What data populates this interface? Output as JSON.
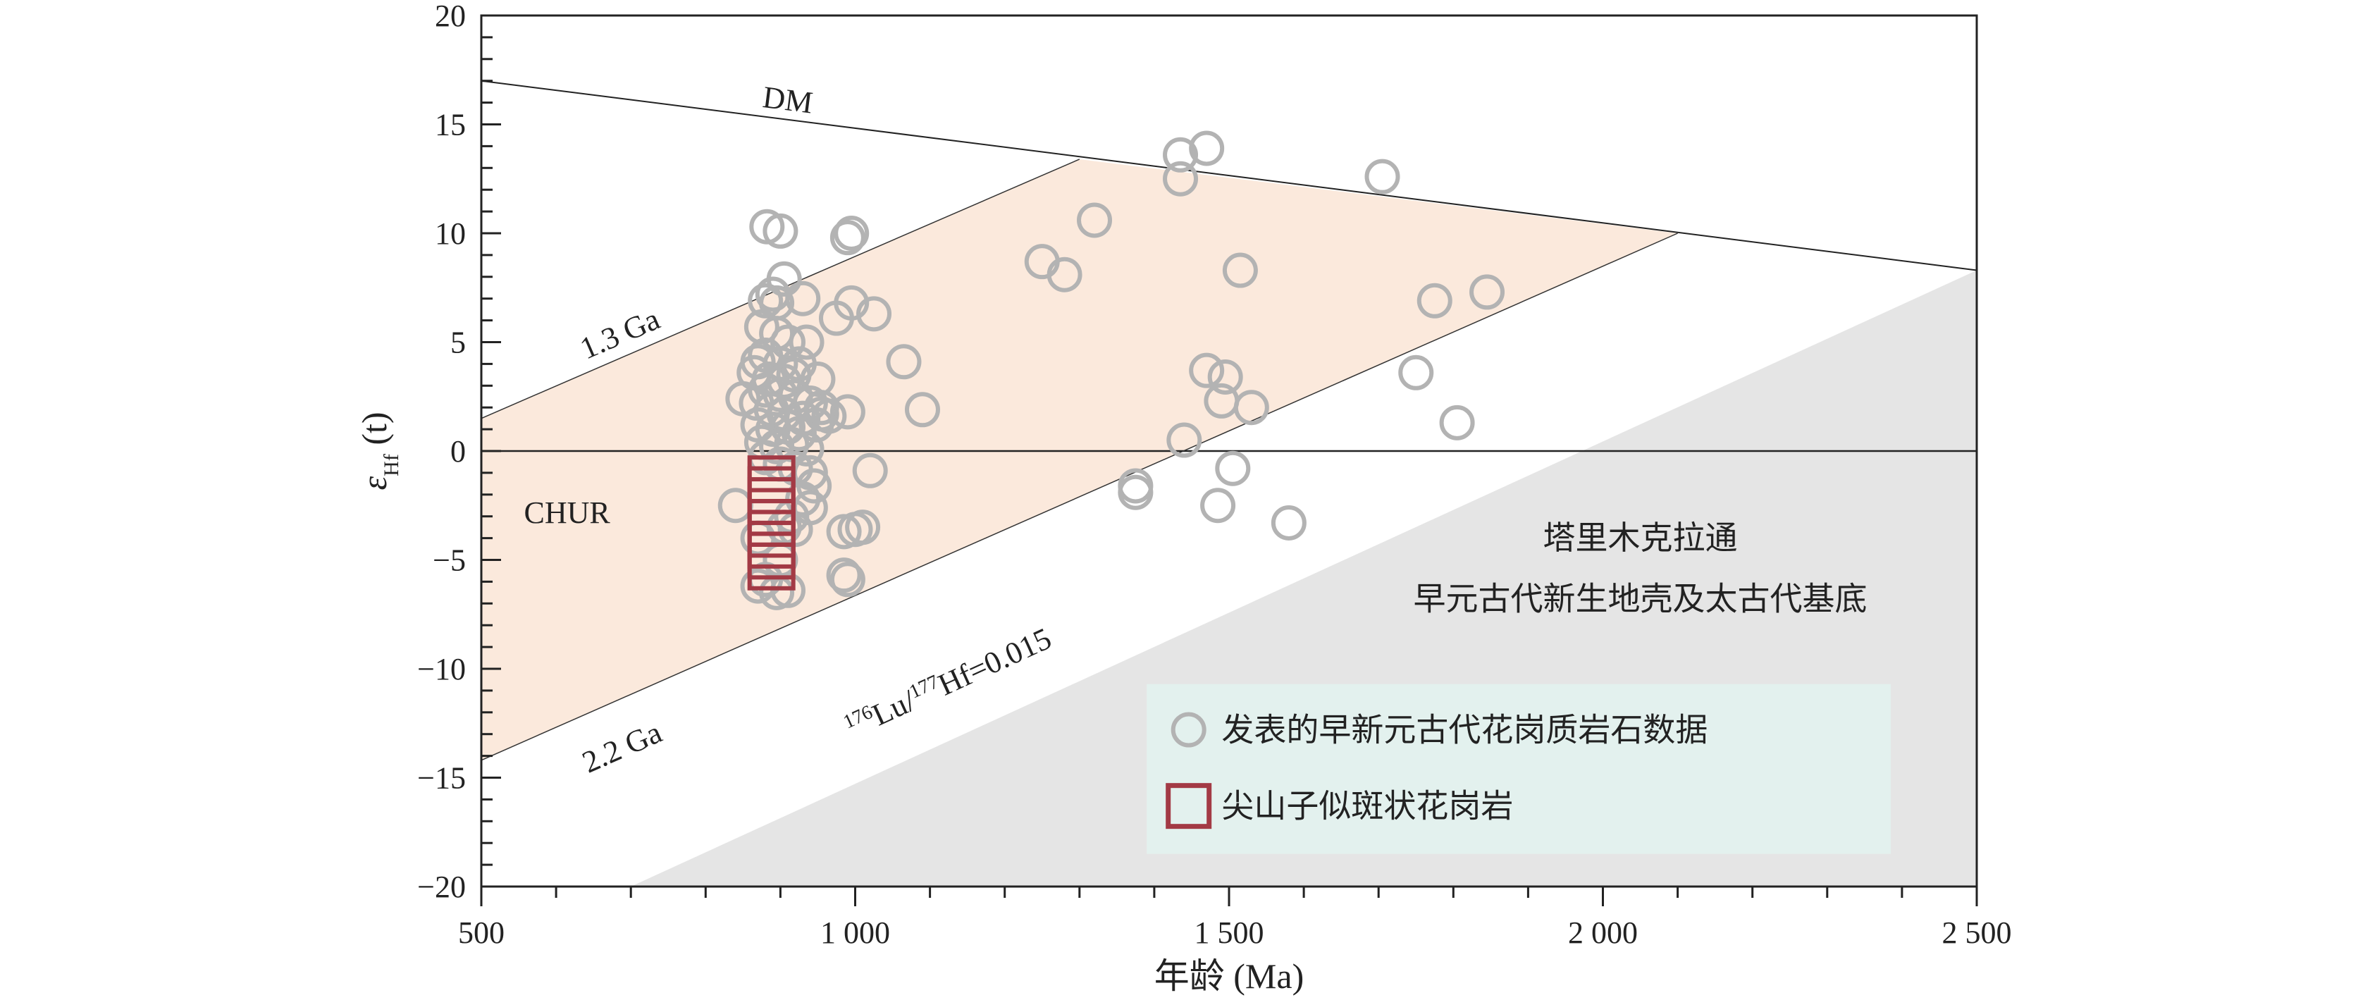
{
  "chart_data": {
    "type": "scatter",
    "xlabel": "年龄 (Ma)",
    "ylabel_main": "ε",
    "ylabel_sub": "Hf",
    "ylabel_suffix": " (t)",
    "xlim": [
      500,
      2500
    ],
    "ylim": [
      -20,
      20
    ],
    "x_major_ticks": [
      500,
      1000,
      1500,
      2000,
      2500
    ],
    "x_tick_labels": [
      "500",
      "1 000",
      "1 500",
      "2 000",
      "2 500"
    ],
    "x_minor_step": 100,
    "y_major_ticks": [
      -20,
      -15,
      -10,
      -5,
      0,
      5,
      10,
      15,
      20
    ],
    "y_tick_labels": [
      "−20",
      "−15",
      "−10",
      "−5",
      "0",
      "5",
      "10",
      "15",
      "20"
    ],
    "y_minor_step": 1,
    "grid": false,
    "lines": {
      "dm": {
        "label": "DM",
        "from": [
          500,
          17.0
        ],
        "to": [
          2500,
          8.3
        ]
      },
      "chur": {
        "label": "CHUR",
        "from": [
          500,
          0
        ],
        "to": [
          2500,
          0
        ]
      },
      "ga13": {
        "label": "1.3 Ga",
        "from": [
          500,
          1.5
        ],
        "to": [
          1300,
          13.4
        ]
      },
      "ga22": {
        "label": "2.2 Ga",
        "from": [
          500,
          -14.2
        ],
        "to": [
          2100,
          10.0
        ]
      },
      "lu": {
        "label_sup1": "176",
        "label_main1": "Lu/",
        "label_sup2": "177",
        "label_main2": "Hf=0.015"
      }
    },
    "regions": {
      "orange_band": {
        "color": "#fbe9dc",
        "polygon": [
          [
            500,
            1.5
          ],
          [
            1300,
            13.4
          ],
          [
            2100,
            10.0
          ],
          [
            500,
            -14.2
          ]
        ]
      },
      "gray_region": {
        "color": "#e5e5e5",
        "polygon": [
          [
            700,
            -20
          ],
          [
            2500,
            8.3
          ],
          [
            2500,
            -20
          ]
        ],
        "label_line1": "塔里木克拉通",
        "label_line2": "早元古代新生地壳及太古代基底"
      }
    },
    "legend": {
      "position": "bottom-right",
      "background": "#e3f1ee",
      "items": [
        {
          "label": "发表的早新元古代花岗质岩石数据",
          "marker": "circle",
          "color": "#b3b3b3"
        },
        {
          "label": "尖山子似斑状花岗岩",
          "marker": "square",
          "color": "#a33a45"
        }
      ]
    },
    "series": [
      {
        "name": "发表的早新元古代花岗质岩石数据",
        "marker": "circle",
        "color": "#b3b3b3",
        "points": [
          [
            882,
            10.3
          ],
          [
            900,
            10.1
          ],
          [
            905,
            7.9
          ],
          [
            890,
            7.2
          ],
          [
            880,
            6.9
          ],
          [
            895,
            6.8
          ],
          [
            930,
            7.0
          ],
          [
            875,
            5.7
          ],
          [
            895,
            5.4
          ],
          [
            910,
            5.0
          ],
          [
            935,
            5.0
          ],
          [
            880,
            4.4
          ],
          [
            870,
            4.1
          ],
          [
            900,
            4.0
          ],
          [
            925,
            4.0
          ],
          [
            950,
            3.3
          ],
          [
            865,
            3.6
          ],
          [
            885,
            3.3
          ],
          [
            905,
            3.2
          ],
          [
            918,
            3.5
          ],
          [
            880,
            2.8
          ],
          [
            900,
            2.6
          ],
          [
            920,
            2.5
          ],
          [
            940,
            2.2
          ],
          [
            850,
            2.4
          ],
          [
            868,
            2.2
          ],
          [
            888,
            1.9
          ],
          [
            905,
            1.7
          ],
          [
            930,
            1.5
          ],
          [
            955,
            1.7
          ],
          [
            870,
            1.2
          ],
          [
            890,
            1.0
          ],
          [
            910,
            1.1
          ],
          [
            925,
            0.8
          ],
          [
            948,
            1.2
          ],
          [
            875,
            0.4
          ],
          [
            895,
            0.2
          ],
          [
            915,
            0.3
          ],
          [
            935,
            0.1
          ],
          [
            880,
            -0.3
          ],
          [
            900,
            -0.6
          ],
          [
            920,
            -0.8
          ],
          [
            940,
            -1.0
          ],
          [
            945,
            -1.6
          ],
          [
            930,
            -2.2
          ],
          [
            915,
            -3.0
          ],
          [
            905,
            -3.5
          ],
          [
            840,
            -2.5
          ],
          [
            940,
            -2.6
          ],
          [
            870,
            -4.0
          ],
          [
            900,
            -5.0
          ],
          [
            880,
            -5.9
          ],
          [
            870,
            -6.2
          ],
          [
            895,
            -6.5
          ],
          [
            910,
            -6.4
          ],
          [
            920,
            -3.6
          ],
          [
            990,
            9.8
          ],
          [
            995,
            10.0
          ],
          [
            995,
            6.8
          ],
          [
            975,
            6.1
          ],
          [
            1025,
            6.3
          ],
          [
            1065,
            4.1
          ],
          [
            1090,
            1.9
          ],
          [
            955,
            2.0
          ],
          [
            965,
            1.6
          ],
          [
            990,
            1.8
          ],
          [
            1020,
            -0.9
          ],
          [
            1000,
            -3.6
          ],
          [
            985,
            -3.7
          ],
          [
            990,
            -5.9
          ],
          [
            985,
            -5.7
          ],
          [
            1010,
            -3.5
          ],
          [
            1250,
            8.7
          ],
          [
            1280,
            8.1
          ],
          [
            1320,
            10.6
          ],
          [
            1435,
            13.6
          ],
          [
            1470,
            13.9
          ],
          [
            1435,
            12.5
          ],
          [
            1515,
            8.3
          ],
          [
            1705,
            12.6
          ],
          [
            1775,
            6.9
          ],
          [
            1845,
            7.3
          ],
          [
            1470,
            3.7
          ],
          [
            1495,
            3.4
          ],
          [
            1490,
            2.3
          ],
          [
            1530,
            2.0
          ],
          [
            1750,
            3.6
          ],
          [
            1805,
            1.3
          ],
          [
            1440,
            0.5
          ],
          [
            1505,
            -0.8
          ],
          [
            1375,
            -1.6
          ],
          [
            1375,
            -1.9
          ],
          [
            1485,
            -2.5
          ],
          [
            1580,
            -3.3
          ]
        ]
      },
      {
        "name": "尖山子似斑状花岗岩",
        "marker": "square",
        "color": "#a33a45",
        "points": [
          [
            888,
            -1.3
          ],
          [
            888,
            -1.8
          ],
          [
            888,
            -2.3
          ],
          [
            888,
            -2.8
          ],
          [
            888,
            -3.3
          ],
          [
            888,
            -3.8
          ],
          [
            888,
            -4.3
          ],
          [
            888,
            -4.8
          ],
          [
            888,
            -5.3
          ]
        ]
      }
    ]
  }
}
